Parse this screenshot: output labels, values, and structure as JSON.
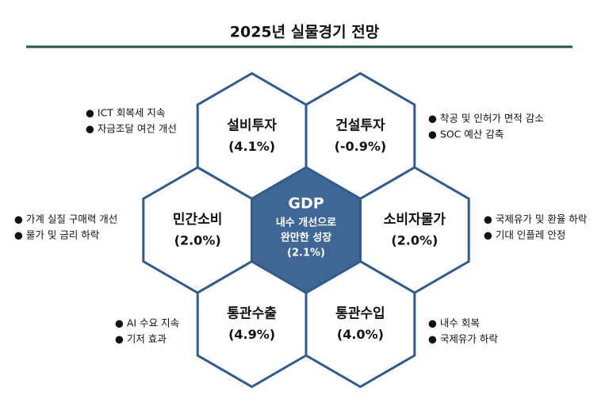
{
  "title": "2025년 실물경기 전망",
  "center": {
    "label": "GDP",
    "lines": [
      "내수 개선으로",
      "완만한 성장"
    ],
    "value": "(2.1%)"
  },
  "nodes": [
    {
      "label": "설비투자",
      "value": "(4.1%)",
      "notes": [
        "● ICT 회복세 지속",
        "● 자금조달 여건 개선"
      ]
    },
    {
      "label": "건설투자",
      "value": "(-0.9%)",
      "notes": [
        "● 착공 및 인허가 면적 감소",
        "● SOC 예산 감축"
      ]
    },
    {
      "label": "민간소비",
      "value": "(2.0%)",
      "notes": [
        "● 가계 실질 구매력 개선",
        "● 물가 및 금리 하락"
      ]
    },
    {
      "label": "소비자물가",
      "value": "(2.0%)",
      "notes": [
        "● 국제유가 및 환율 하락",
        "● 기대 인플레 안정"
      ]
    },
    {
      "label": "통관수출",
      "value": "(4.9%)",
      "notes": [
        "● AI 수요 지속",
        "● 기저 효과"
      ]
    },
    {
      "label": "통관수입",
      "value": "(4.0%)",
      "notes": [
        "● 내수 회복",
        "● 국제유가 하락"
      ]
    }
  ]
}
